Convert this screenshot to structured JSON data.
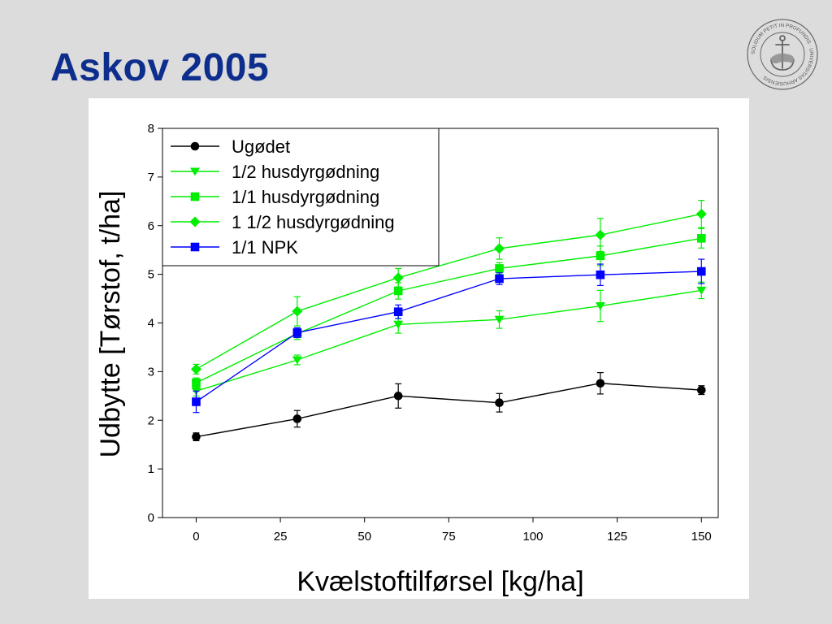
{
  "title": "Askov 2005",
  "colors": {
    "title": "#0d2e8c",
    "background": "#dcdcdc",
    "panel": "#ffffff"
  },
  "seal": {
    "icon": "university-seal-icon",
    "ring_text": "SOLIDUM PETIT IN PROFUNDIS · UNIVERSITAS ARHUSIENSIS"
  },
  "chart_data": {
    "type": "line",
    "xlabel": "Kvælstoftilførsel [kg/ha]",
    "ylabel": "Udbytte [Tørstof,  t/ha]",
    "xlim": [
      -10,
      155
    ],
    "ylim": [
      0,
      8
    ],
    "xticks": [
      0,
      25,
      50,
      75,
      100,
      125,
      150
    ],
    "yticks": [
      0,
      1,
      2,
      3,
      4,
      5,
      6,
      7,
      8
    ],
    "grid": false,
    "legend_position": "top-left",
    "x": [
      0,
      30,
      60,
      90,
      120,
      150
    ],
    "series": [
      {
        "name": "Ugødet",
        "color": "#000000",
        "marker": "circle",
        "values": [
          1.66,
          2.03,
          2.5,
          2.36,
          2.76,
          2.62
        ],
        "errors": [
          0.08,
          0.17,
          0.25,
          0.19,
          0.22,
          0.09
        ]
      },
      {
        "name": "1/2 husdyrgødning",
        "color": "#00ee00",
        "marker": "triangle-down",
        "values": [
          2.6,
          3.24,
          3.97,
          4.07,
          4.35,
          4.67
        ],
        "errors": [
          0.1,
          0.1,
          0.18,
          0.18,
          0.32,
          0.17
        ]
      },
      {
        "name": "1/1 husdyrgødning",
        "color": "#00ee00",
        "marker": "square",
        "values": [
          2.77,
          3.78,
          4.66,
          5.12,
          5.38,
          5.74
        ],
        "errors": [
          0.1,
          0.12,
          0.17,
          0.12,
          0.2,
          0.2
        ]
      },
      {
        "name": "1 1/2 husdyrgødning",
        "color": "#00ee00",
        "marker": "diamond",
        "values": [
          3.05,
          4.24,
          4.93,
          5.53,
          5.81,
          6.24
        ],
        "errors": [
          0.1,
          0.3,
          0.19,
          0.22,
          0.34,
          0.28
        ]
      },
      {
        "name": "1/1 NPK",
        "color": "#0000ff",
        "marker": "square",
        "values": [
          2.38,
          3.8,
          4.23,
          4.91,
          4.99,
          5.06
        ],
        "errors": [
          0.22,
          0.1,
          0.14,
          0.12,
          0.22,
          0.25
        ]
      }
    ]
  }
}
